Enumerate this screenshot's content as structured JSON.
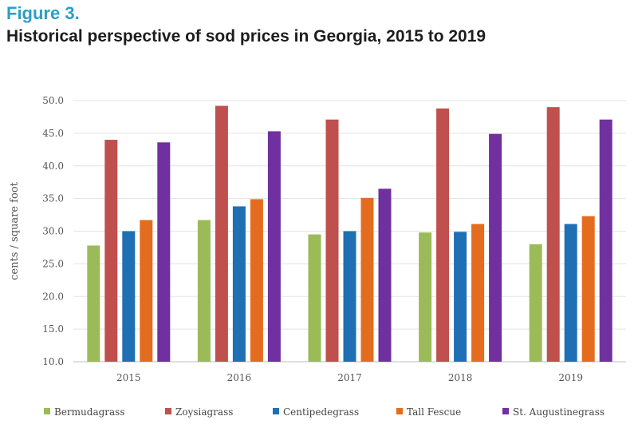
{
  "figure_label": "Figure 3.",
  "chart_data": {
    "type": "bar",
    "title": "Historical perspective of sod prices in Georgia, 2015 to 2019",
    "xlabel": "",
    "ylabel": "cents / square foot",
    "categories": [
      "2015",
      "2016",
      "2017",
      "2018",
      "2019"
    ],
    "ylim": [
      10,
      50
    ],
    "yticks": [
      "10.0",
      "15.0",
      "20.0",
      "25.0",
      "30.0",
      "35.0",
      "40.0",
      "45.0",
      "50.0"
    ],
    "grid": true,
    "legend_position": "bottom",
    "series": [
      {
        "name": "Bermudagrass",
        "color": "#9bbb59",
        "values": [
          27.8,
          31.7,
          29.5,
          29.8,
          28.0
        ]
      },
      {
        "name": "Zoysiagrass",
        "color": "#c0504d",
        "values": [
          44.0,
          49.2,
          47.1,
          48.8,
          49.0
        ]
      },
      {
        "name": "Centipedegrass",
        "color": "#1f6fb5",
        "values": [
          30.0,
          33.8,
          30.0,
          29.9,
          31.1
        ]
      },
      {
        "name": "Tall Fescue",
        "color": "#e46c1e",
        "values": [
          31.7,
          34.9,
          35.1,
          31.1,
          32.3
        ]
      },
      {
        "name": "St. Augustinegrass",
        "color": "#7030a0",
        "values": [
          43.6,
          45.3,
          36.5,
          44.9,
          47.1
        ]
      }
    ]
  }
}
